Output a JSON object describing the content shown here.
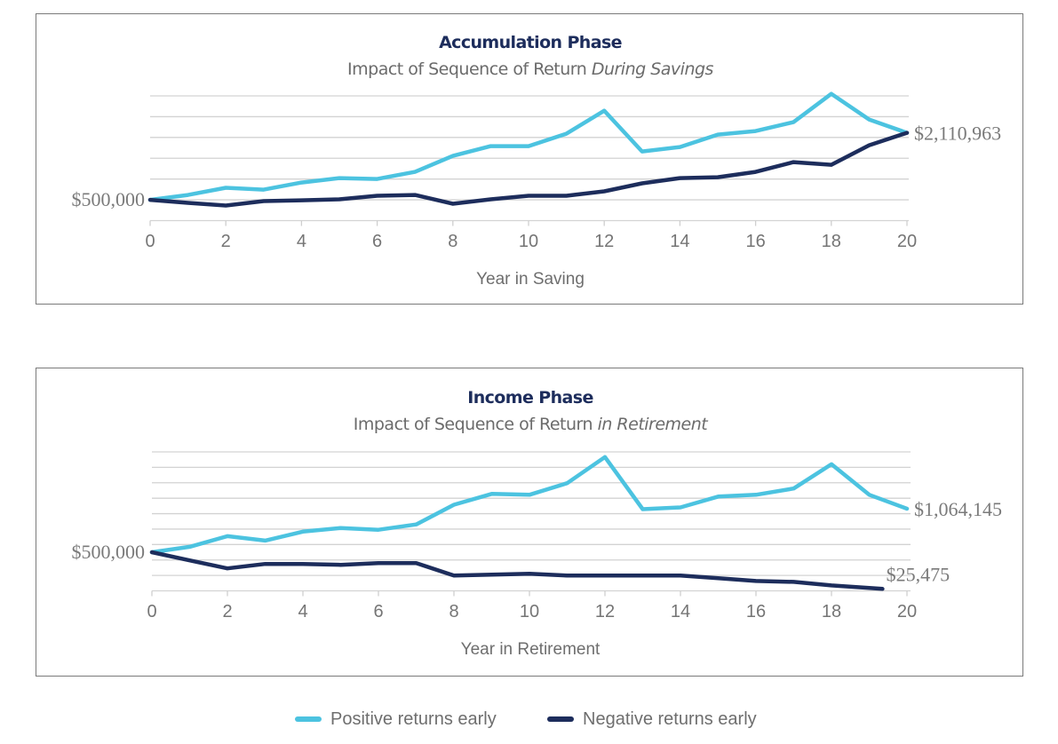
{
  "colors": {
    "positive": "#4cc3e0",
    "negative": "#1d2d5c",
    "title": "#1d2d5c"
  },
  "legend": [
    {
      "label": "Positive returns early",
      "series": "positive"
    },
    {
      "label": "Negative returns early",
      "series": "negative"
    }
  ],
  "chart_data": [
    {
      "type": "line",
      "title": "Accumulation Phase",
      "subtitle_plain": "Impact of Sequence of Return ",
      "subtitle_italic": "During Savings",
      "xlabel": "Year in Saving",
      "ylabel": "",
      "xlim": [
        0,
        20
      ],
      "ylim": [
        0,
        3000000
      ],
      "y_grid_step": 500000,
      "x_ticks": [
        0,
        2,
        4,
        6,
        8,
        10,
        12,
        14,
        16,
        18,
        20
      ],
      "grid": true,
      "start_label": "$500,000",
      "end_labels": [
        {
          "series": "positive",
          "text": "$2,110,963",
          "x": 20,
          "y": 2110963
        }
      ],
      "series": [
        {
          "name": "Positive returns early",
          "key": "positive",
          "x": [
            0,
            1,
            2,
            3,
            4,
            5,
            6,
            7,
            8,
            9,
            10,
            11,
            12,
            13,
            14,
            15,
            16,
            17,
            18,
            19,
            20
          ],
          "values": [
            500000,
            618000,
            789000,
            746000,
            917000,
            1023000,
            1002000,
            1173000,
            1556000,
            1791000,
            1791000,
            2090000,
            2644000,
            1663000,
            1770000,
            2068000,
            2154000,
            2367000,
            3049000,
            2431000,
            2110963
          ]
        },
        {
          "name": "Negative returns early",
          "key": "negative",
          "x": [
            0,
            1,
            2,
            3,
            4,
            5,
            6,
            7,
            8,
            9,
            10,
            11,
            12,
            13,
            14,
            15,
            16,
            17,
            18,
            19,
            20
          ],
          "values": [
            500000,
            426000,
            362000,
            469000,
            490000,
            512000,
            597000,
            618000,
            405000,
            512000,
            597000,
            597000,
            704000,
            896000,
            1023000,
            1045000,
            1173000,
            1407000,
            1343000,
            1812000,
            2110963
          ]
        }
      ]
    },
    {
      "type": "line",
      "title": "Income Phase",
      "subtitle_plain": "Impact of Sequence of Return ",
      "subtitle_italic": "in Retirement",
      "xlabel": "Year in Retirement",
      "ylabel": "",
      "xlim": [
        0,
        20
      ],
      "ylim": [
        0,
        1800000
      ],
      "y_grid_step": 200000,
      "x_ticks": [
        0,
        2,
        4,
        6,
        8,
        10,
        12,
        14,
        16,
        18,
        20
      ],
      "grid": true,
      "start_label": "$500,000",
      "end_labels": [
        {
          "series": "positive",
          "text": "$1,064,145",
          "x": 20,
          "y": 1064145
        },
        {
          "series": "negative",
          "text": "$25,475",
          "x": 19.35,
          "y": 25475
        }
      ],
      "series": [
        {
          "name": "Positive returns early",
          "key": "positive",
          "x": [
            0,
            1,
            2,
            3,
            4,
            5,
            6,
            7,
            8,
            9,
            10,
            11,
            12,
            13,
            14,
            15,
            16,
            17,
            18,
            19,
            20
          ],
          "values": [
            500000,
            570000,
            709000,
            651000,
            767000,
            814000,
            791000,
            860000,
            1116000,
            1256000,
            1244000,
            1395000,
            1733000,
            1058000,
            1081000,
            1221000,
            1244000,
            1326000,
            1640000,
            1244000,
            1064145
          ]
        },
        {
          "name": "Negative returns early",
          "key": "negative",
          "x": [
            0,
            1,
            2,
            3,
            4,
            5,
            6,
            7,
            8,
            9,
            10,
            11,
            12,
            13,
            14,
            15,
            16,
            17,
            18,
            19.35
          ],
          "values": [
            500000,
            395000,
            291000,
            349000,
            349000,
            337000,
            360000,
            360000,
            198000,
            209000,
            221000,
            198000,
            198000,
            198000,
            198000,
            163000,
            128000,
            116000,
            70000,
            25475
          ]
        }
      ]
    }
  ]
}
